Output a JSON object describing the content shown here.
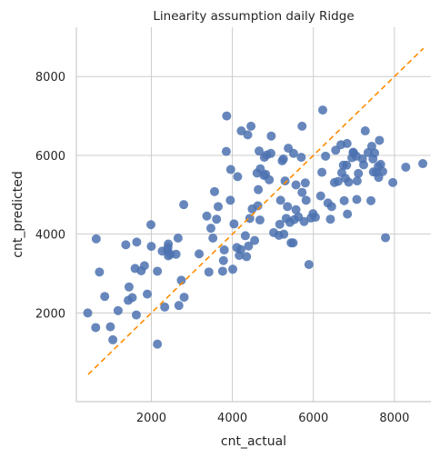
{
  "chart_data": {
    "type": "scatter",
    "title": "Linearity assumption daily Ridge",
    "xlabel": "cnt_actual",
    "ylabel": "cnt_predicted",
    "xlim": [
      150,
      8900
    ],
    "ylim": [
      -250,
      9250
    ],
    "xticks": [
      2000,
      4000,
      6000,
      8000
    ],
    "yticks": [
      2000,
      4000,
      6000,
      8000
    ],
    "xtick_labels": [
      "2000",
      "4000",
      "6000",
      "8000"
    ],
    "ytick_labels": [
      "2000",
      "4000",
      "6000",
      "8000"
    ],
    "grid": true,
    "reference_line": {
      "style": "dashed",
      "color": "#ff8c00",
      "x": [
        441,
        8714
      ],
      "y": [
        441,
        8714
      ]
    },
    "point_color": "#4c72b0",
    "points": [
      [
        431,
        2000
      ],
      [
        627,
        1630
      ],
      [
        640,
        3880
      ],
      [
        720,
        3040
      ],
      [
        850,
        2420
      ],
      [
        990,
        1650
      ],
      [
        1050,
        1320
      ],
      [
        1180,
        2060
      ],
      [
        1370,
        3730
      ],
      [
        1430,
        2320
      ],
      [
        1450,
        2660
      ],
      [
        1530,
        2390
      ],
      [
        1600,
        3130
      ],
      [
        1630,
        1950
      ],
      [
        1640,
        3800
      ],
      [
        1750,
        3070
      ],
      [
        1830,
        3200
      ],
      [
        1900,
        2480
      ],
      [
        1990,
        4240
      ],
      [
        2000,
        3690
      ],
      [
        2150,
        1210
      ],
      [
        2150,
        3060
      ],
      [
        2270,
        3570
      ],
      [
        2330,
        2150
      ],
      [
        2400,
        3580
      ],
      [
        2410,
        3660
      ],
      [
        2420,
        3750
      ],
      [
        2420,
        3450
      ],
      [
        2470,
        3490
      ],
      [
        2610,
        3490
      ],
      [
        2660,
        3900
      ],
      [
        2680,
        2190
      ],
      [
        2740,
        2830
      ],
      [
        2800,
        4750
      ],
      [
        2810,
        2400
      ],
      [
        3180,
        3500
      ],
      [
        3370,
        4460
      ],
      [
        3420,
        3040
      ],
      [
        3470,
        4150
      ],
      [
        3520,
        3900
      ],
      [
        3560,
        5080
      ],
      [
        3610,
        4380
      ],
      [
        3650,
        4700
      ],
      [
        3760,
        3060
      ],
      [
        3780,
        3330
      ],
      [
        3800,
        3600
      ],
      [
        3850,
        6100
      ],
      [
        3860,
        7000
      ],
      [
        3950,
        4860
      ],
      [
        3960,
        5640
      ],
      [
        4010,
        3110
      ],
      [
        4040,
        4260
      ],
      [
        4110,
        3660
      ],
      [
        4130,
        5460
      ],
      [
        4170,
        3460
      ],
      [
        4210,
        3610
      ],
      [
        4220,
        6620
      ],
      [
        4320,
        3960
      ],
      [
        4350,
        3430
      ],
      [
        4380,
        6520
      ],
      [
        4400,
        3700
      ],
      [
        4430,
        4400
      ],
      [
        4460,
        6740
      ],
      [
        4490,
        4640
      ],
      [
        4550,
        3840
      ],
      [
        4610,
        5550
      ],
      [
        4630,
        4720
      ],
      [
        4640,
        5130
      ],
      [
        4660,
        6110
      ],
      [
        4680,
        4360
      ],
      [
        4690,
        5660
      ],
      [
        4780,
        5490
      ],
      [
        4790,
        5950
      ],
      [
        4820,
        5520
      ],
      [
        4850,
        6010
      ],
      [
        4910,
        5380
      ],
      [
        4950,
        6050
      ],
      [
        4960,
        6490
      ],
      [
        5020,
        4040
      ],
      [
        5150,
        3970
      ],
      [
        5170,
        4250
      ],
      [
        5190,
        4860
      ],
      [
        5230,
        5860
      ],
      [
        5260,
        5910
      ],
      [
        5270,
        4000
      ],
      [
        5300,
        5350
      ],
      [
        5330,
        4400
      ],
      [
        5360,
        4700
      ],
      [
        5380,
        6180
      ],
      [
        5420,
        4300
      ],
      [
        5450,
        3780
      ],
      [
        5500,
        3780
      ],
      [
        5510,
        6050
      ],
      [
        5530,
        4370
      ],
      [
        5570,
        4620
      ],
      [
        5570,
        5250
      ],
      [
        5630,
        4440
      ],
      [
        5700,
        5950
      ],
      [
        5720,
        6740
      ],
      [
        5720,
        5060
      ],
      [
        5770,
        4320
      ],
      [
        5800,
        5300
      ],
      [
        5820,
        4860
      ],
      [
        5890,
        3230
      ],
      [
        5940,
        4410
      ],
      [
        5990,
        4520
      ],
      [
        6050,
        4430
      ],
      [
        6180,
        4970
      ],
      [
        6210,
        5570
      ],
      [
        6230,
        7150
      ],
      [
        6300,
        5980
      ],
      [
        6360,
        4790
      ],
      [
        6420,
        4380
      ],
      [
        6450,
        4700
      ],
      [
        6520,
        5310
      ],
      [
        6550,
        6130
      ],
      [
        6610,
        5340
      ],
      [
        6680,
        6270
      ],
      [
        6700,
        5560
      ],
      [
        6740,
        5750
      ],
      [
        6760,
        4850
      ],
      [
        6790,
        5420
      ],
      [
        6820,
        5750
      ],
      [
        6830,
        6300
      ],
      [
        6840,
        4510
      ],
      [
        6870,
        5320
      ],
      [
        6950,
        5940
      ],
      [
        6980,
        6080
      ],
      [
        6990,
        6060
      ],
      [
        7060,
        5980
      ],
      [
        7070,
        4880
      ],
      [
        7080,
        5350
      ],
      [
        7110,
        5540
      ],
      [
        7210,
        5910
      ],
      [
        7240,
        5760
      ],
      [
        7280,
        6620
      ],
      [
        7350,
        6070
      ],
      [
        7420,
        4850
      ],
      [
        7440,
        6230
      ],
      [
        7470,
        5910
      ],
      [
        7480,
        5580
      ],
      [
        7510,
        6060
      ],
      [
        7550,
        5570
      ],
      [
        7600,
        5720
      ],
      [
        7610,
        5440
      ],
      [
        7630,
        6380
      ],
      [
        7660,
        5770
      ],
      [
        7710,
        5590
      ],
      [
        7780,
        3910
      ],
      [
        7960,
        5310
      ],
      [
        8280,
        5700
      ],
      [
        8700,
        5790
      ]
    ]
  }
}
